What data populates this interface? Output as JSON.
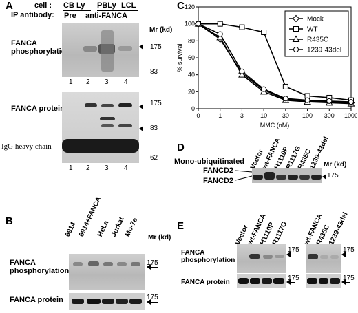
{
  "panelA": {
    "letter": "A",
    "cell_label": "cell :",
    "ip_label": "IP antibody:",
    "cells": [
      "CB Ly",
      "PBLy",
      "LCL"
    ],
    "antibodies": [
      "Pre",
      "anti-FANCA"
    ],
    "mr_label": "Mr (kd)",
    "row1_label_line1": "FANCA",
    "row1_label_line2": "phosphorylation",
    "row2_label": "FANCA protein",
    "igg_label": "IgG heavy chain",
    "row1_markers": [
      "175",
      "83"
    ],
    "row2_markers": [
      "175",
      "83",
      "62"
    ],
    "lanes": [
      "1",
      "2",
      "3",
      "4"
    ]
  },
  "panelB": {
    "letter": "B",
    "lanes": [
      "6914",
      "6914+FANCA",
      "HeLa",
      "Jurkat",
      "Mo-7e"
    ],
    "mr_label": "Mr (kd)",
    "row1_label_line1": "FANCA",
    "row1_label_line2": "phosphorylation",
    "row2_label": "FANCA protein",
    "markers": [
      "175",
      "175"
    ]
  },
  "panelC": {
    "letter": "C"
  },
  "chart_data": {
    "type": "line",
    "xlabel": "MMC (nM)",
    "ylabel": "% survival",
    "x": [
      0,
      1,
      3,
      10,
      30,
      100,
      300,
      1000
    ],
    "x_tick_labels": [
      "0",
      "1",
      "3",
      "10",
      "30",
      "100",
      "300",
      "1000"
    ],
    "ylim": [
      0,
      120
    ],
    "y_ticks": [
      0,
      20,
      40,
      60,
      80,
      100,
      120
    ],
    "legend_position": "top-right",
    "series": [
      {
        "name": "Mock",
        "marker": "diamond",
        "values": [
          100,
          82,
          42,
          22,
          11,
          9,
          8,
          7
        ]
      },
      {
        "name": "WT",
        "marker": "square",
        "values": [
          100,
          100,
          96,
          90,
          26,
          15,
          13,
          10
        ]
      },
      {
        "name": "R435C",
        "marker": "triangle",
        "values": [
          100,
          84,
          40,
          20,
          10,
          8,
          7,
          6
        ]
      },
      {
        "name": "1239-43del",
        "marker": "circle",
        "values": [
          100,
          88,
          44,
          23,
          12,
          10,
          9,
          8
        ]
      }
    ]
  },
  "panelD": {
    "letter": "D",
    "mono_label": "Mono-ubiquitinated",
    "fancd2_top": "FANCD2",
    "fancd2_bottom": "FANCD2",
    "mr_label": "Mr (kd)",
    "marker": "175",
    "lanes": [
      "Vector",
      "wt-FANCA",
      "H1110P",
      "R1117G",
      "R435C",
      "1239-43del"
    ]
  },
  "panelE": {
    "letter": "E",
    "row1_label_line1": "FANCA",
    "row1_label_line2": "phosphorylation",
    "row2_label": "FANCA protein",
    "left_lanes": [
      "Vector",
      "wt-FANCA",
      "H1110P",
      "R1117G"
    ],
    "right_lanes": [
      "wt-FANCA",
      "R435C",
      "1239-43del"
    ],
    "markers": [
      "175",
      "175",
      "175",
      "175"
    ]
  }
}
